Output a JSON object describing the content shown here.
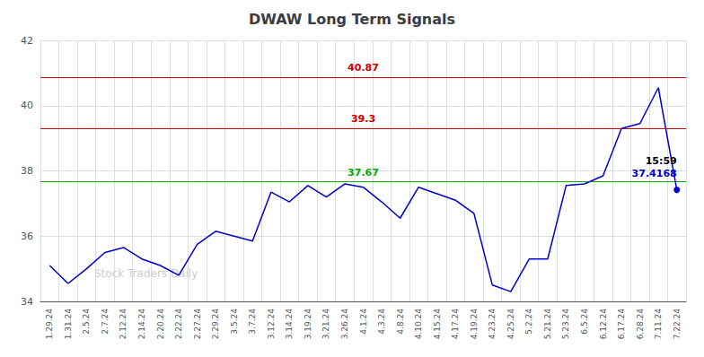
{
  "chart_data": {
    "type": "line",
    "title": "DWAW Long Term Signals",
    "categories": [
      "1.29.24",
      "1.31.24",
      "2.5.24",
      "2.7.24",
      "2.12.24",
      "2.14.24",
      "2.20.24",
      "2.22.24",
      "2.27.24",
      "2.29.24",
      "3.5.24",
      "3.7.24",
      "3.12.24",
      "3.14.24",
      "3.19.24",
      "3.21.24",
      "3.26.24",
      "4.1.24",
      "4.3.24",
      "4.8.24",
      "4.10.24",
      "4.15.24",
      "4.17.24",
      "4.19.24",
      "4.23.24",
      "4.25.24",
      "5.2.24",
      "5.21.24",
      "5.23.24",
      "6.5.24",
      "6.12.24",
      "6.17.24",
      "6.28.24",
      "7.11.24",
      "7.22.24"
    ],
    "values": [
      35.1,
      34.55,
      35.0,
      35.5,
      35.65,
      35.3,
      35.1,
      34.8,
      35.75,
      36.15,
      36.0,
      35.85,
      37.35,
      37.05,
      37.55,
      37.2,
      37.6,
      37.5,
      37.05,
      36.55,
      37.5,
      37.3,
      37.1,
      36.7,
      34.5,
      34.3,
      35.3,
      35.3,
      37.55,
      37.6,
      37.85,
      39.3,
      39.45,
      40.55,
      37.42
    ],
    "color": "#0000cc",
    "ylim": [
      34,
      42
    ],
    "yticks": [
      34,
      36,
      38,
      40,
      42
    ],
    "grid": true,
    "reference_lines": [
      {
        "value": 37.67,
        "color": "#00aa00"
      },
      {
        "value": 39.3,
        "color": "#cc0000"
      },
      {
        "value": 40.87,
        "color": "#cc0000"
      }
    ],
    "annotations": [
      {
        "text": "15:59",
        "color": "#000000"
      },
      {
        "text": "37.4168",
        "color": "#0000cc"
      }
    ],
    "watermark": "Stock Traders Daily"
  }
}
